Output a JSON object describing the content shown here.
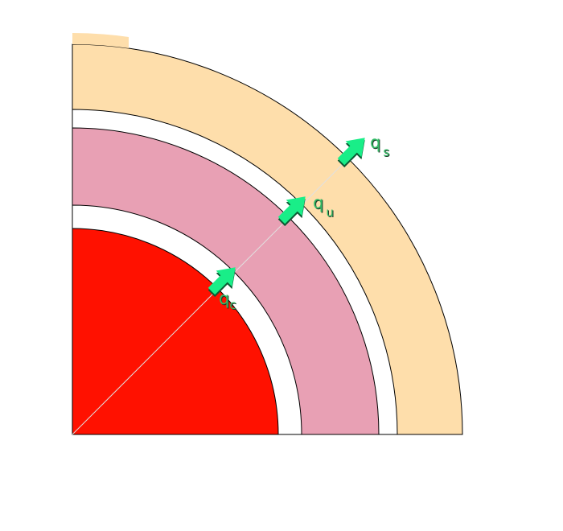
{
  "colors": {
    "core": "#ff1100",
    "core_gap": "#ffffff",
    "middle_layer": "#e8a0b4",
    "outer_gap": "#ffffff",
    "outer_layer": "#fedeab",
    "outline": "#000000",
    "ray": "#e0e0e0",
    "arrow": "#19ee88",
    "arrow_shadow": "#0b5a33",
    "label_text": "#33bb66",
    "label_shadow": "#1f3a2a"
  },
  "icons": {
    "arrow": "arrow-up-right-icon"
  },
  "labels": {
    "core": {
      "main": "q",
      "sub": "c"
    },
    "middle": {
      "main": "q",
      "sub": "u"
    },
    "outer": {
      "main": "q",
      "sub": "s"
    }
  }
}
